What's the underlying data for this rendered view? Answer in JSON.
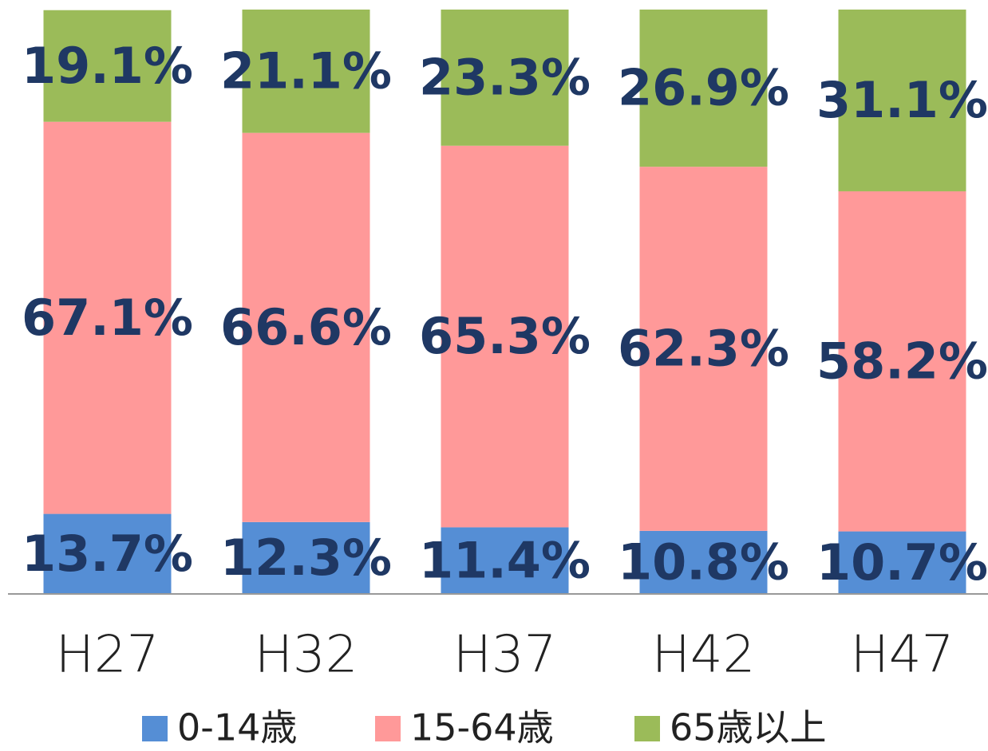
{
  "chart_data": {
    "type": "stacked_bar",
    "categories": [
      "H27",
      "H32",
      "H37",
      "H42",
      "H47"
    ],
    "series": [
      {
        "name": "0-14歳",
        "color": "#558ed5",
        "values": [
          13.7,
          12.3,
          11.4,
          10.8,
          10.7
        ],
        "value_labels": [
          "13.7%",
          "12.3%",
          "11.4%",
          "10.8%",
          "10.7%"
        ]
      },
      {
        "name": "15-64歳",
        "color": "#ff9999",
        "values": [
          67.1,
          66.6,
          65.3,
          62.3,
          58.2
        ],
        "value_labels": [
          "67.1%",
          "66.6%",
          "65.3%",
          "62.3%",
          "58.2%"
        ]
      },
      {
        "name": "65歳以上",
        "color": "#9bbb59",
        "values": [
          19.1,
          21.1,
          23.3,
          26.9,
          31.1
        ],
        "value_labels": [
          "19.1%",
          "21.1%",
          "23.3%",
          "26.9%",
          "31.1%"
        ]
      }
    ],
    "ylim": [
      0,
      100
    ]
  }
}
